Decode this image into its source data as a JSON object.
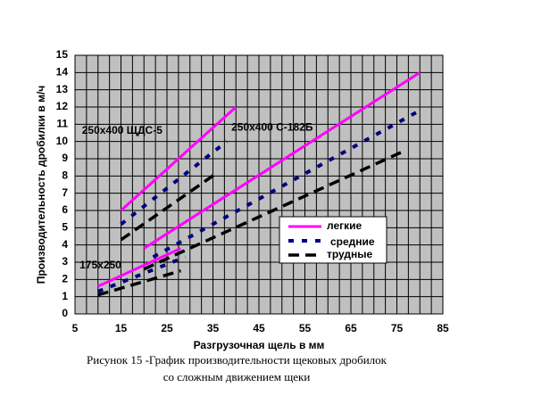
{
  "chart_data": {
    "type": "line",
    "xlabel": "Разгрузочная щель  в мм",
    "ylabel": "Производительность дробилки в м/ч",
    "caption": [
      "Рисунок 15 -График  производительности щековых дробилок",
      "со сложным движением щеки"
    ],
    "xlim": [
      5,
      85
    ],
    "xticks": [
      5,
      15,
      25,
      35,
      45,
      55,
      65,
      75,
      85
    ],
    "ylim": [
      0,
      15
    ],
    "yticks": [
      0,
      1,
      2,
      3,
      4,
      5,
      6,
      7,
      8,
      9,
      10,
      11,
      12,
      13,
      14,
      15
    ],
    "xgrid": [
      5,
      7.5,
      10,
      12.5,
      15,
      17.5,
      20,
      22.5,
      25,
      27.5,
      30,
      32.5,
      35,
      37.5,
      40,
      42.5,
      45,
      47.5,
      50,
      52.5,
      55,
      57.5,
      60,
      62.5,
      65,
      67.5,
      70,
      72.5,
      75,
      77.5,
      80,
      82.5,
      85
    ],
    "grid": true,
    "plot_background": "#c0c0c0",
    "annotations": [
      {
        "text": "250x400 ЩДС-5",
        "x": 6.5,
        "y": 10.6
      },
      {
        "text": "250x400 С-182Б",
        "x": 39,
        "y": 10.8
      },
      {
        "text": "175x250",
        "x": 6,
        "y": 2.8
      }
    ],
    "series": [
      {
        "name": "легкие",
        "color": "#ff00ff",
        "x": [
          15,
          40,
          null,
          20,
          80,
          null,
          10,
          28
        ],
        "values": [
          6,
          12,
          null,
          3.8,
          14,
          null,
          1.6,
          3.8
        ]
      },
      {
        "name": "средние",
        "color": "#000080",
        "x": [
          15,
          38,
          null,
          22,
          80,
          null,
          10,
          29
        ],
        "values": [
          5.2,
          10,
          null,
          3.3,
          11.8,
          null,
          1.3,
          3.3
        ]
      },
      {
        "name": "трудные",
        "color": "#000000",
        "x": [
          15,
          36,
          null,
          20,
          77,
          null,
          10,
          28
        ],
        "values": [
          4.3,
          8.2,
          null,
          2.6,
          9.5,
          null,
          1.1,
          2.5
        ]
      }
    ]
  }
}
